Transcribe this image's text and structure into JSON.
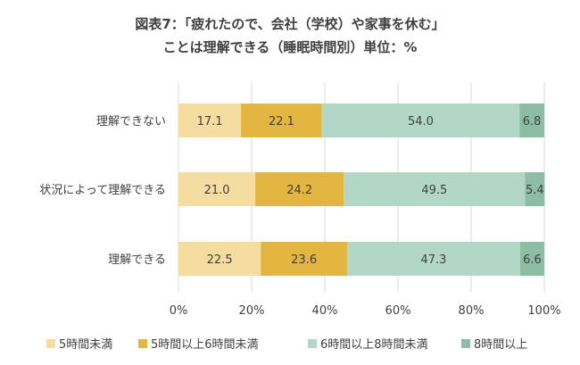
{
  "title_line1": "図表7：「疲れたので、会社（学校）や家事を休む」",
  "title_line2": "ことは理解できる（睡眠時間別）単位：%",
  "chart_data": {
    "type": "bar",
    "orientation": "horizontal",
    "stacked": true,
    "normalized": true,
    "title": "図表7：「疲れたので、会社（学校）や家事を休む」ことは理解できる（睡眠時間別）単位：%",
    "categories": [
      "理解できない",
      "状況によって理解できる",
      "理解できる"
    ],
    "series": [
      {
        "name": "5時間未満",
        "values": [
          17.1,
          21.0,
          22.5
        ],
        "color": "#f5dca0"
      },
      {
        "name": "5時間以上6時間未満",
        "values": [
          22.1,
          24.2,
          23.6
        ],
        "color": "#e3b541"
      },
      {
        "name": "6時間以上8時間未満",
        "values": [
          54.0,
          49.5,
          47.3
        ],
        "color": "#b3d7c6"
      },
      {
        "name": "8時間以上",
        "values": [
          6.8,
          5.4,
          6.6
        ],
        "color": "#8cbea5"
      }
    ],
    "xlim": [
      0,
      100
    ],
    "xticks": [
      "0%",
      "20%",
      "40%",
      "60%",
      "80%",
      "100%"
    ],
    "grid": true,
    "legend_position": "bottom"
  }
}
